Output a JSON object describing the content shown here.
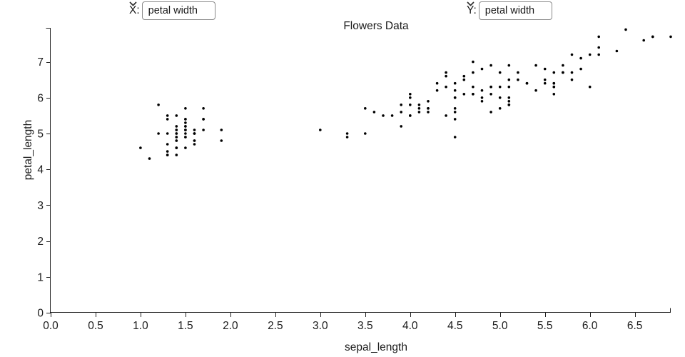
{
  "controls": {
    "x_label": "X:",
    "x_select_value": "petal width",
    "y_label": "Y:",
    "y_select_value": "petal width"
  },
  "chart_data": {
    "type": "scatter",
    "title": "Flowers Data",
    "xlabel": "sepal_length",
    "ylabel": "petal_length",
    "xlim": [
      0,
      6.9
    ],
    "ylim": [
      0,
      7.9
    ],
    "x_ticks": [
      0.0,
      0.5,
      1.0,
      1.5,
      2.0,
      2.5,
      3.0,
      3.5,
      4.0,
      4.5,
      5.0,
      5.5,
      6.0,
      6.5
    ],
    "x_tick_labels": [
      "0.0",
      "0.5",
      "1.0",
      "1.5",
      "2.0",
      "2.5",
      "3.0",
      "3.5",
      "4.0",
      "4.5",
      "5.0",
      "5.5",
      "6.0",
      "6.5"
    ],
    "y_ticks": [
      0,
      1,
      2,
      3,
      4,
      5,
      6,
      7
    ],
    "y_tick_labels": [
      "0",
      "1",
      "2",
      "3",
      "4",
      "5",
      "6",
      "7"
    ],
    "grid": false,
    "legend": "none",
    "point_color": "#000000",
    "axis_color": "#222222",
    "points": [
      [
        1.4,
        5.1
      ],
      [
        1.4,
        4.9
      ],
      [
        1.3,
        4.7
      ],
      [
        1.5,
        4.6
      ],
      [
        1.4,
        5.0
      ],
      [
        1.7,
        5.4
      ],
      [
        1.4,
        4.6
      ],
      [
        1.5,
        5.0
      ],
      [
        1.4,
        4.4
      ],
      [
        1.5,
        4.9
      ],
      [
        1.5,
        5.4
      ],
      [
        1.6,
        4.8
      ],
      [
        1.4,
        4.8
      ],
      [
        1.1,
        4.3
      ],
      [
        1.2,
        5.8
      ],
      [
        1.5,
        5.7
      ],
      [
        1.3,
        5.4
      ],
      [
        1.4,
        5.1
      ],
      [
        1.7,
        5.7
      ],
      [
        1.5,
        5.1
      ],
      [
        1.7,
        5.4
      ],
      [
        1.5,
        5.1
      ],
      [
        1.0,
        4.6
      ],
      [
        1.7,
        5.1
      ],
      [
        1.9,
        4.8
      ],
      [
        1.6,
        5.0
      ],
      [
        1.6,
        5.0
      ],
      [
        1.5,
        5.2
      ],
      [
        1.4,
        5.2
      ],
      [
        1.6,
        4.7
      ],
      [
        1.6,
        4.8
      ],
      [
        1.5,
        5.4
      ],
      [
        1.5,
        5.2
      ],
      [
        1.4,
        5.5
      ],
      [
        1.5,
        4.9
      ],
      [
        1.2,
        5.0
      ],
      [
        1.3,
        5.5
      ],
      [
        1.4,
        4.9
      ],
      [
        1.3,
        4.4
      ],
      [
        1.5,
        5.1
      ],
      [
        1.3,
        5.0
      ],
      [
        1.3,
        4.5
      ],
      [
        1.3,
        4.4
      ],
      [
        1.6,
        5.0
      ],
      [
        1.9,
        5.1
      ],
      [
        1.4,
        4.8
      ],
      [
        1.6,
        5.1
      ],
      [
        1.4,
        4.6
      ],
      [
        1.5,
        5.3
      ],
      [
        1.4,
        5.0
      ],
      [
        4.7,
        7.0
      ],
      [
        4.5,
        6.4
      ],
      [
        4.9,
        6.9
      ],
      [
        4.0,
        5.5
      ],
      [
        4.6,
        6.5
      ],
      [
        4.5,
        5.7
      ],
      [
        4.7,
        6.3
      ],
      [
        3.3,
        4.9
      ],
      [
        4.6,
        6.6
      ],
      [
        3.9,
        5.2
      ],
      [
        3.5,
        5.0
      ],
      [
        4.2,
        5.9
      ],
      [
        4.0,
        6.0
      ],
      [
        4.7,
        6.1
      ],
      [
        3.6,
        5.6
      ],
      [
        4.4,
        6.7
      ],
      [
        4.5,
        5.6
      ],
      [
        4.1,
        5.8
      ],
      [
        4.5,
        6.2
      ],
      [
        3.9,
        5.6
      ],
      [
        4.8,
        5.9
      ],
      [
        4.0,
        6.1
      ],
      [
        4.9,
        6.3
      ],
      [
        4.7,
        6.1
      ],
      [
        4.3,
        6.4
      ],
      [
        4.4,
        6.6
      ],
      [
        4.8,
        6.8
      ],
      [
        5.0,
        6.7
      ],
      [
        4.5,
        6.0
      ],
      [
        3.5,
        5.7
      ],
      [
        3.8,
        5.5
      ],
      [
        3.7,
        5.5
      ],
      [
        3.9,
        5.8
      ],
      [
        5.1,
        6.0
      ],
      [
        4.5,
        5.4
      ],
      [
        4.5,
        6.0
      ],
      [
        4.7,
        6.7
      ],
      [
        4.4,
        6.3
      ],
      [
        4.1,
        5.6
      ],
      [
        4.0,
        5.5
      ],
      [
        4.4,
        5.5
      ],
      [
        4.6,
        6.1
      ],
      [
        4.0,
        5.8
      ],
      [
        3.3,
        5.0
      ],
      [
        4.2,
        5.6
      ],
      [
        4.2,
        5.7
      ],
      [
        4.2,
        5.7
      ],
      [
        4.3,
        6.2
      ],
      [
        3.0,
        5.1
      ],
      [
        4.1,
        5.7
      ],
      [
        6.0,
        6.3
      ],
      [
        5.1,
        5.8
      ],
      [
        5.9,
        7.1
      ],
      [
        5.6,
        6.3
      ],
      [
        5.8,
        6.5
      ],
      [
        6.6,
        7.6
      ],
      [
        4.5,
        4.9
      ],
      [
        6.3,
        7.3
      ],
      [
        5.8,
        6.7
      ],
      [
        6.1,
        7.2
      ],
      [
        5.1,
        6.5
      ],
      [
        5.3,
        6.4
      ],
      [
        5.5,
        6.8
      ],
      [
        5.0,
        5.7
      ],
      [
        5.1,
        5.8
      ],
      [
        5.3,
        6.4
      ],
      [
        5.5,
        6.5
      ],
      [
        6.7,
        7.7
      ],
      [
        6.9,
        7.7
      ],
      [
        5.0,
        6.0
      ],
      [
        5.7,
        6.9
      ],
      [
        4.9,
        5.6
      ],
      [
        6.7,
        7.7
      ],
      [
        4.9,
        6.3
      ],
      [
        5.7,
        6.7
      ],
      [
        6.0,
        7.2
      ],
      [
        4.8,
        6.2
      ],
      [
        4.9,
        6.1
      ],
      [
        5.6,
        6.4
      ],
      [
        5.8,
        7.2
      ],
      [
        6.1,
        7.4
      ],
      [
        6.4,
        7.9
      ],
      [
        5.6,
        6.4
      ],
      [
        5.1,
        6.3
      ],
      [
        5.6,
        6.1
      ],
      [
        6.1,
        7.7
      ],
      [
        5.6,
        6.3
      ],
      [
        5.5,
        6.4
      ],
      [
        4.8,
        6.0
      ],
      [
        5.4,
        6.9
      ],
      [
        5.6,
        6.7
      ],
      [
        5.1,
        6.9
      ],
      [
        5.1,
        5.8
      ],
      [
        5.9,
        6.8
      ],
      [
        5.7,
        6.7
      ],
      [
        5.2,
        6.7
      ],
      [
        5.0,
        6.3
      ],
      [
        5.2,
        6.5
      ],
      [
        5.4,
        6.2
      ],
      [
        5.1,
        5.9
      ]
    ]
  }
}
